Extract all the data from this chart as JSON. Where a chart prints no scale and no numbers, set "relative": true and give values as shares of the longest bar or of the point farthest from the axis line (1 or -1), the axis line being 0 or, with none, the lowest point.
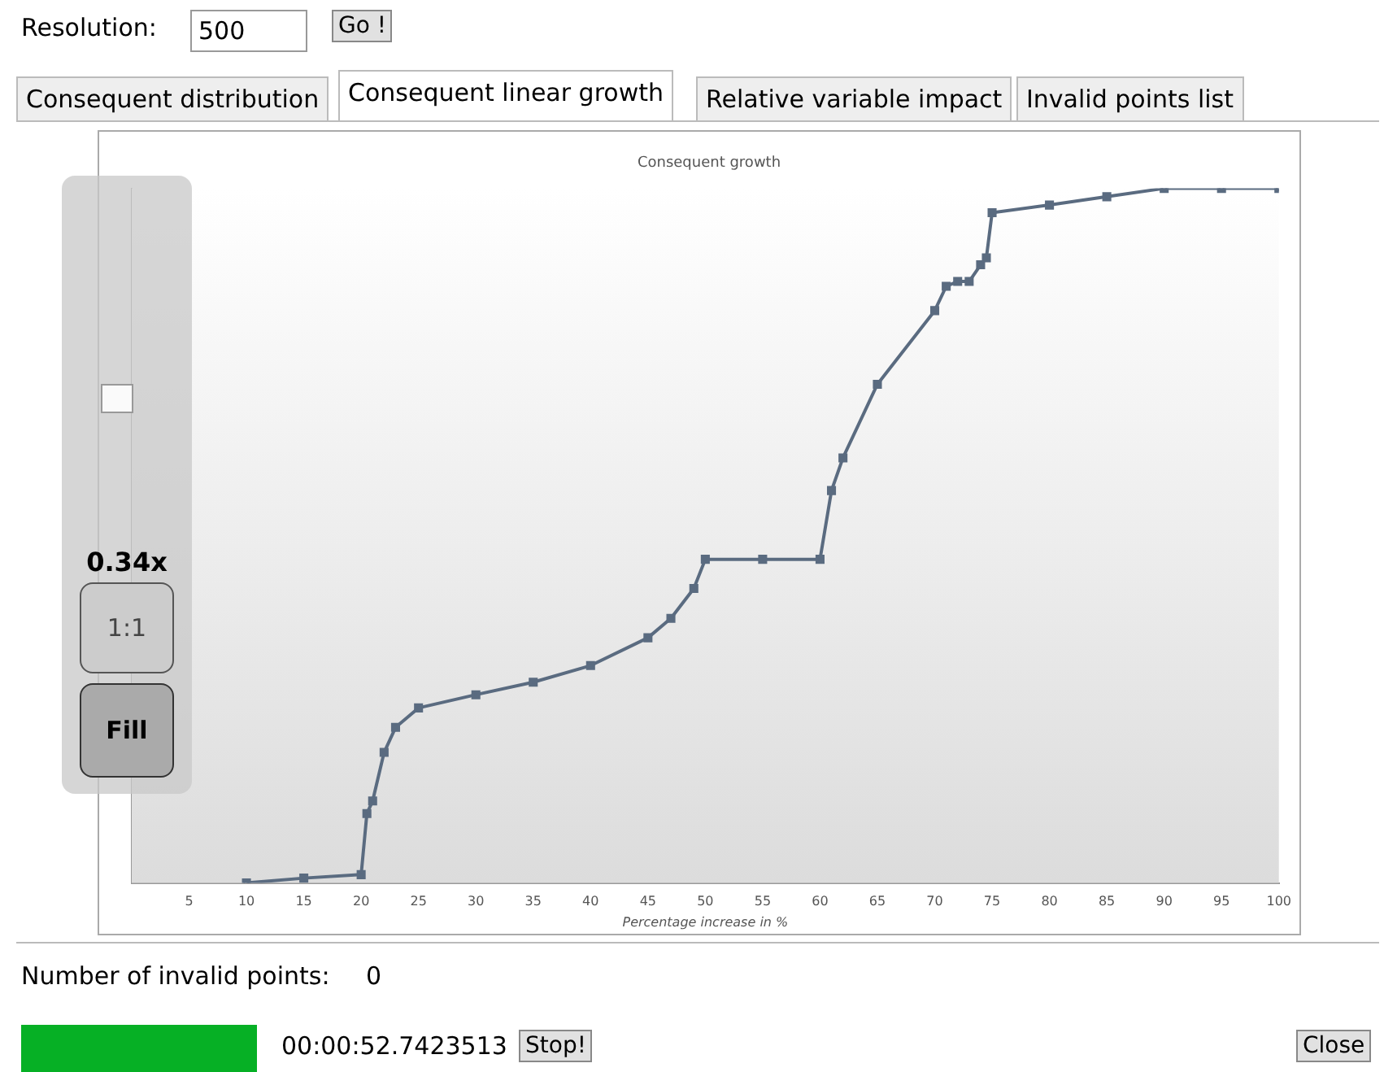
{
  "chart_data": {
    "type": "line",
    "title": "Consequent growth",
    "xlabel": "Percentage increase in %",
    "relative": true,
    "marker": "square",
    "line_style": "solid",
    "grid": false,
    "legend": false,
    "tick_labels": "x",
    "xlim": [
      0,
      100
    ],
    "xticks": [
      5,
      10,
      15,
      20,
      25,
      30,
      35,
      40,
      45,
      50,
      55,
      60,
      65,
      70,
      75,
      80,
      85,
      90,
      95,
      100
    ],
    "x": [
      10,
      15,
      20,
      20.5,
      21,
      22,
      23,
      25,
      30,
      35,
      40,
      45,
      47,
      49,
      50,
      55,
      60,
      61,
      62,
      65,
      70,
      71,
      72,
      73,
      74,
      74.5,
      75,
      80,
      85,
      90,
      95,
      100
    ],
    "series": [
      {
        "color": "#5a6b80",
        "values": [
          0,
          0.007,
          0.012,
          0.1,
          0.118,
          0.188,
          0.224,
          0.252,
          0.271,
          0.289,
          0.313,
          0.353,
          0.381,
          0.424,
          0.466,
          0.466,
          0.466,
          0.565,
          0.612,
          0.718,
          0.824,
          0.859,
          0.866,
          0.866,
          0.89,
          0.9,
          0.965,
          0.976,
          0.988,
          1,
          1,
          1
        ]
      }
    ],
    "annotations": [
      "Resolution:",
      "500",
      "Go !",
      "Consequent distribution",
      "Consequent linear growth",
      "Relative variable impact",
      "Invalid points list",
      "0.34x",
      "1:1",
      "Fill",
      "Number of invalid points:",
      "0",
      "00:00:52.7423513",
      "Stop!",
      "Close"
    ]
  }
}
